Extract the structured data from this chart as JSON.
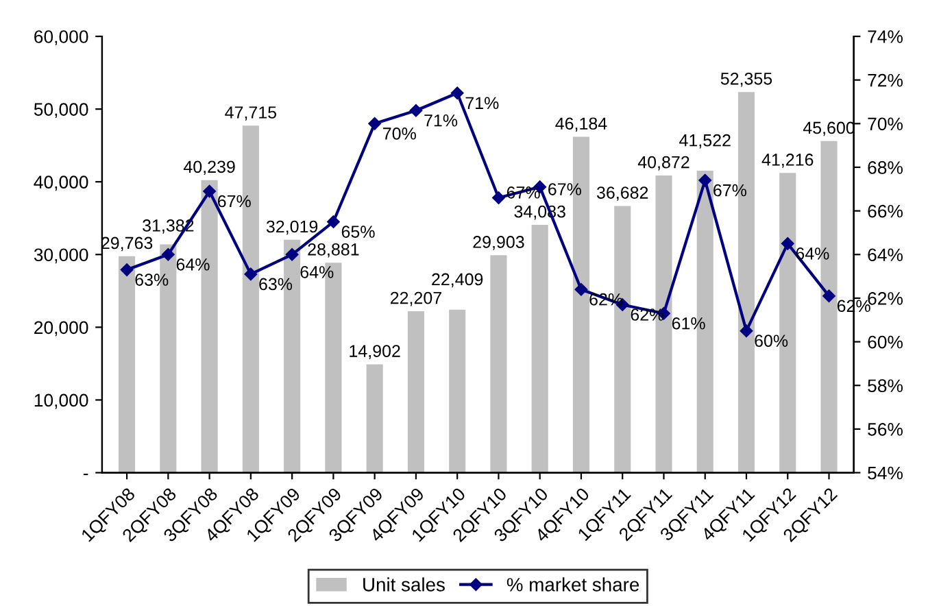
{
  "chart_data": {
    "type": "bar",
    "categories": [
      "1QFY08",
      "2QFY08",
      "3QFY08",
      "4QFY08",
      "1QFY09",
      "2QFY09",
      "3QFY09",
      "4QFY09",
      "1QFY10",
      "2QFY10",
      "3QFY10",
      "4QFY10",
      "1QFY11",
      "2QFY11",
      "3QFY11",
      "4QFY11",
      "1QFY12",
      "2QFY12"
    ],
    "series": [
      {
        "name": "Unit sales",
        "color": "#c0c0c0",
        "values": [
          29763,
          31382,
          40239,
          47715,
          32019,
          28881,
          14902,
          22207,
          22409,
          29903,
          34083,
          46184,
          36682,
          40872,
          41522,
          52355,
          41216,
          45600
        ],
        "value_labels": [
          "29,763",
          "31,382",
          "40,239",
          "47,715",
          "32,019",
          "28,881",
          "14,902",
          "22,207",
          "22,409",
          "29,903",
          "34,083",
          "46,184",
          "36,682",
          "40,872",
          "41,522",
          "52,355",
          "41,216",
          "45,600"
        ]
      },
      {
        "name": "% market share",
        "type": "line",
        "axis": "y2",
        "color": "#000080",
        "marker": "diamond",
        "line_style": "solid",
        "values": [
          63.3,
          64.0,
          66.9,
          63.1,
          64.0,
          65.5,
          70.0,
          70.6,
          71.4,
          66.6,
          67.1,
          62.4,
          61.7,
          61.3,
          67.4,
          60.5,
          64.5,
          62.1
        ],
        "value_labels": [
          "63%",
          "64%",
          "67%",
          "63%",
          "64%",
          "65%",
          "70%",
          "71%",
          "71%",
          "67%",
          "67%",
          "62%",
          "62%",
          "61%",
          "67%",
          "60%",
          "64%",
          "62%"
        ]
      }
    ],
    "ylim": [
      0,
      60000
    ],
    "yticks": [
      {
        "value": 0,
        "label": "-"
      },
      {
        "value": 10000,
        "label": "10,000"
      },
      {
        "value": 20000,
        "label": "20,000"
      },
      {
        "value": 30000,
        "label": "30,000"
      },
      {
        "value": 40000,
        "label": "40,000"
      },
      {
        "value": 50000,
        "label": "50,000"
      },
      {
        "value": 60000,
        "label": "60,000"
      }
    ],
    "y2lim": [
      54,
      74
    ],
    "y2ticks": [
      {
        "value": 54,
        "label": "54%"
      },
      {
        "value": 56,
        "label": "56%"
      },
      {
        "value": 58,
        "label": "58%"
      },
      {
        "value": 60,
        "label": "60%"
      },
      {
        "value": 62,
        "label": "62%"
      },
      {
        "value": 64,
        "label": "64%"
      },
      {
        "value": 66,
        "label": "66%"
      },
      {
        "value": 68,
        "label": "68%"
      },
      {
        "value": 70,
        "label": "70%"
      },
      {
        "value": 72,
        "label": "72%"
      },
      {
        "value": 74,
        "label": "74%"
      }
    ],
    "grid": false,
    "legend": "bottom"
  }
}
